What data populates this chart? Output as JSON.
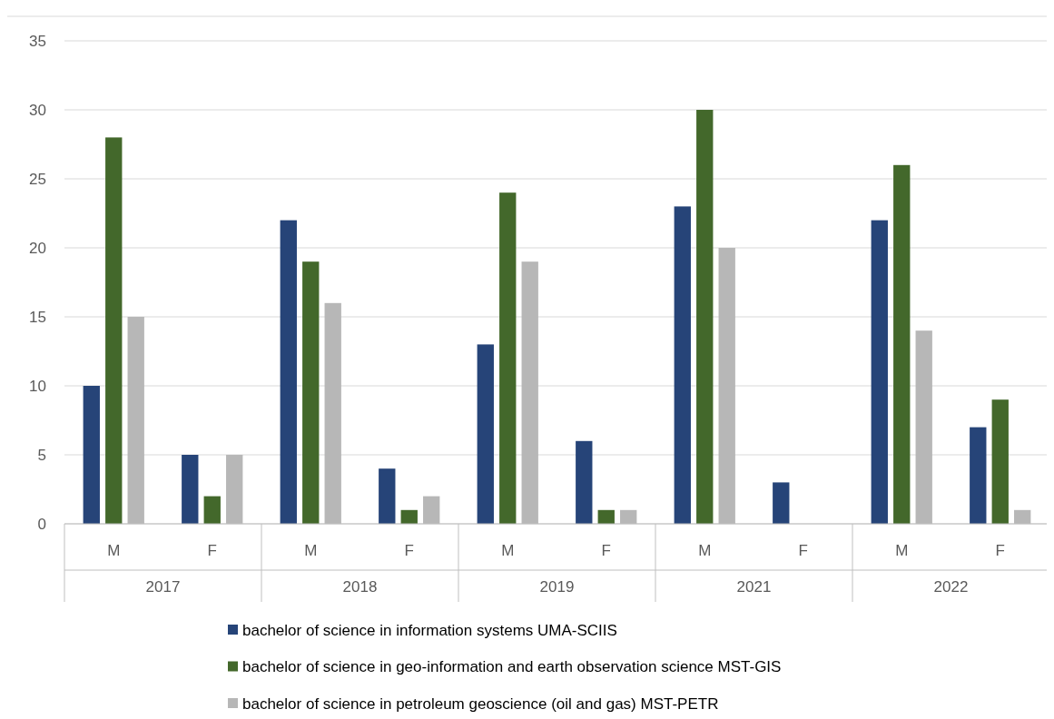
{
  "chart_data": {
    "type": "bar",
    "categories": [
      "M",
      "F",
      "M",
      "F",
      "M",
      "F",
      "M",
      "F",
      "M",
      "F"
    ],
    "annotations": [
      "2017",
      "2018",
      "2019",
      "2021",
      "2022"
    ],
    "series": [
      {
        "name": "bachelor of science in information systems UMA-SCIIS",
        "color": "#264478",
        "values": [
          10,
          5,
          22,
          4,
          13,
          6,
          23,
          3,
          22,
          7
        ]
      },
      {
        "name": "bachelor of science in geo-information and earth observation science MST-GIS",
        "color": "#43682b",
        "values": [
          28,
          2,
          19,
          1,
          24,
          1,
          30,
          0,
          26,
          9
        ]
      },
      {
        "name": "bachelor of science in petroleum geoscience (oil and gas) MST-PETR",
        "color": "#b7b7b7",
        "values": [
          15,
          5,
          16,
          2,
          19,
          1,
          20,
          0,
          14,
          1
        ]
      }
    ],
    "ylim": [
      0,
      35
    ],
    "yticks": [
      0,
      5,
      10,
      15,
      20,
      25,
      30,
      35
    ],
    "grid": "y",
    "legend": "bottom"
  }
}
